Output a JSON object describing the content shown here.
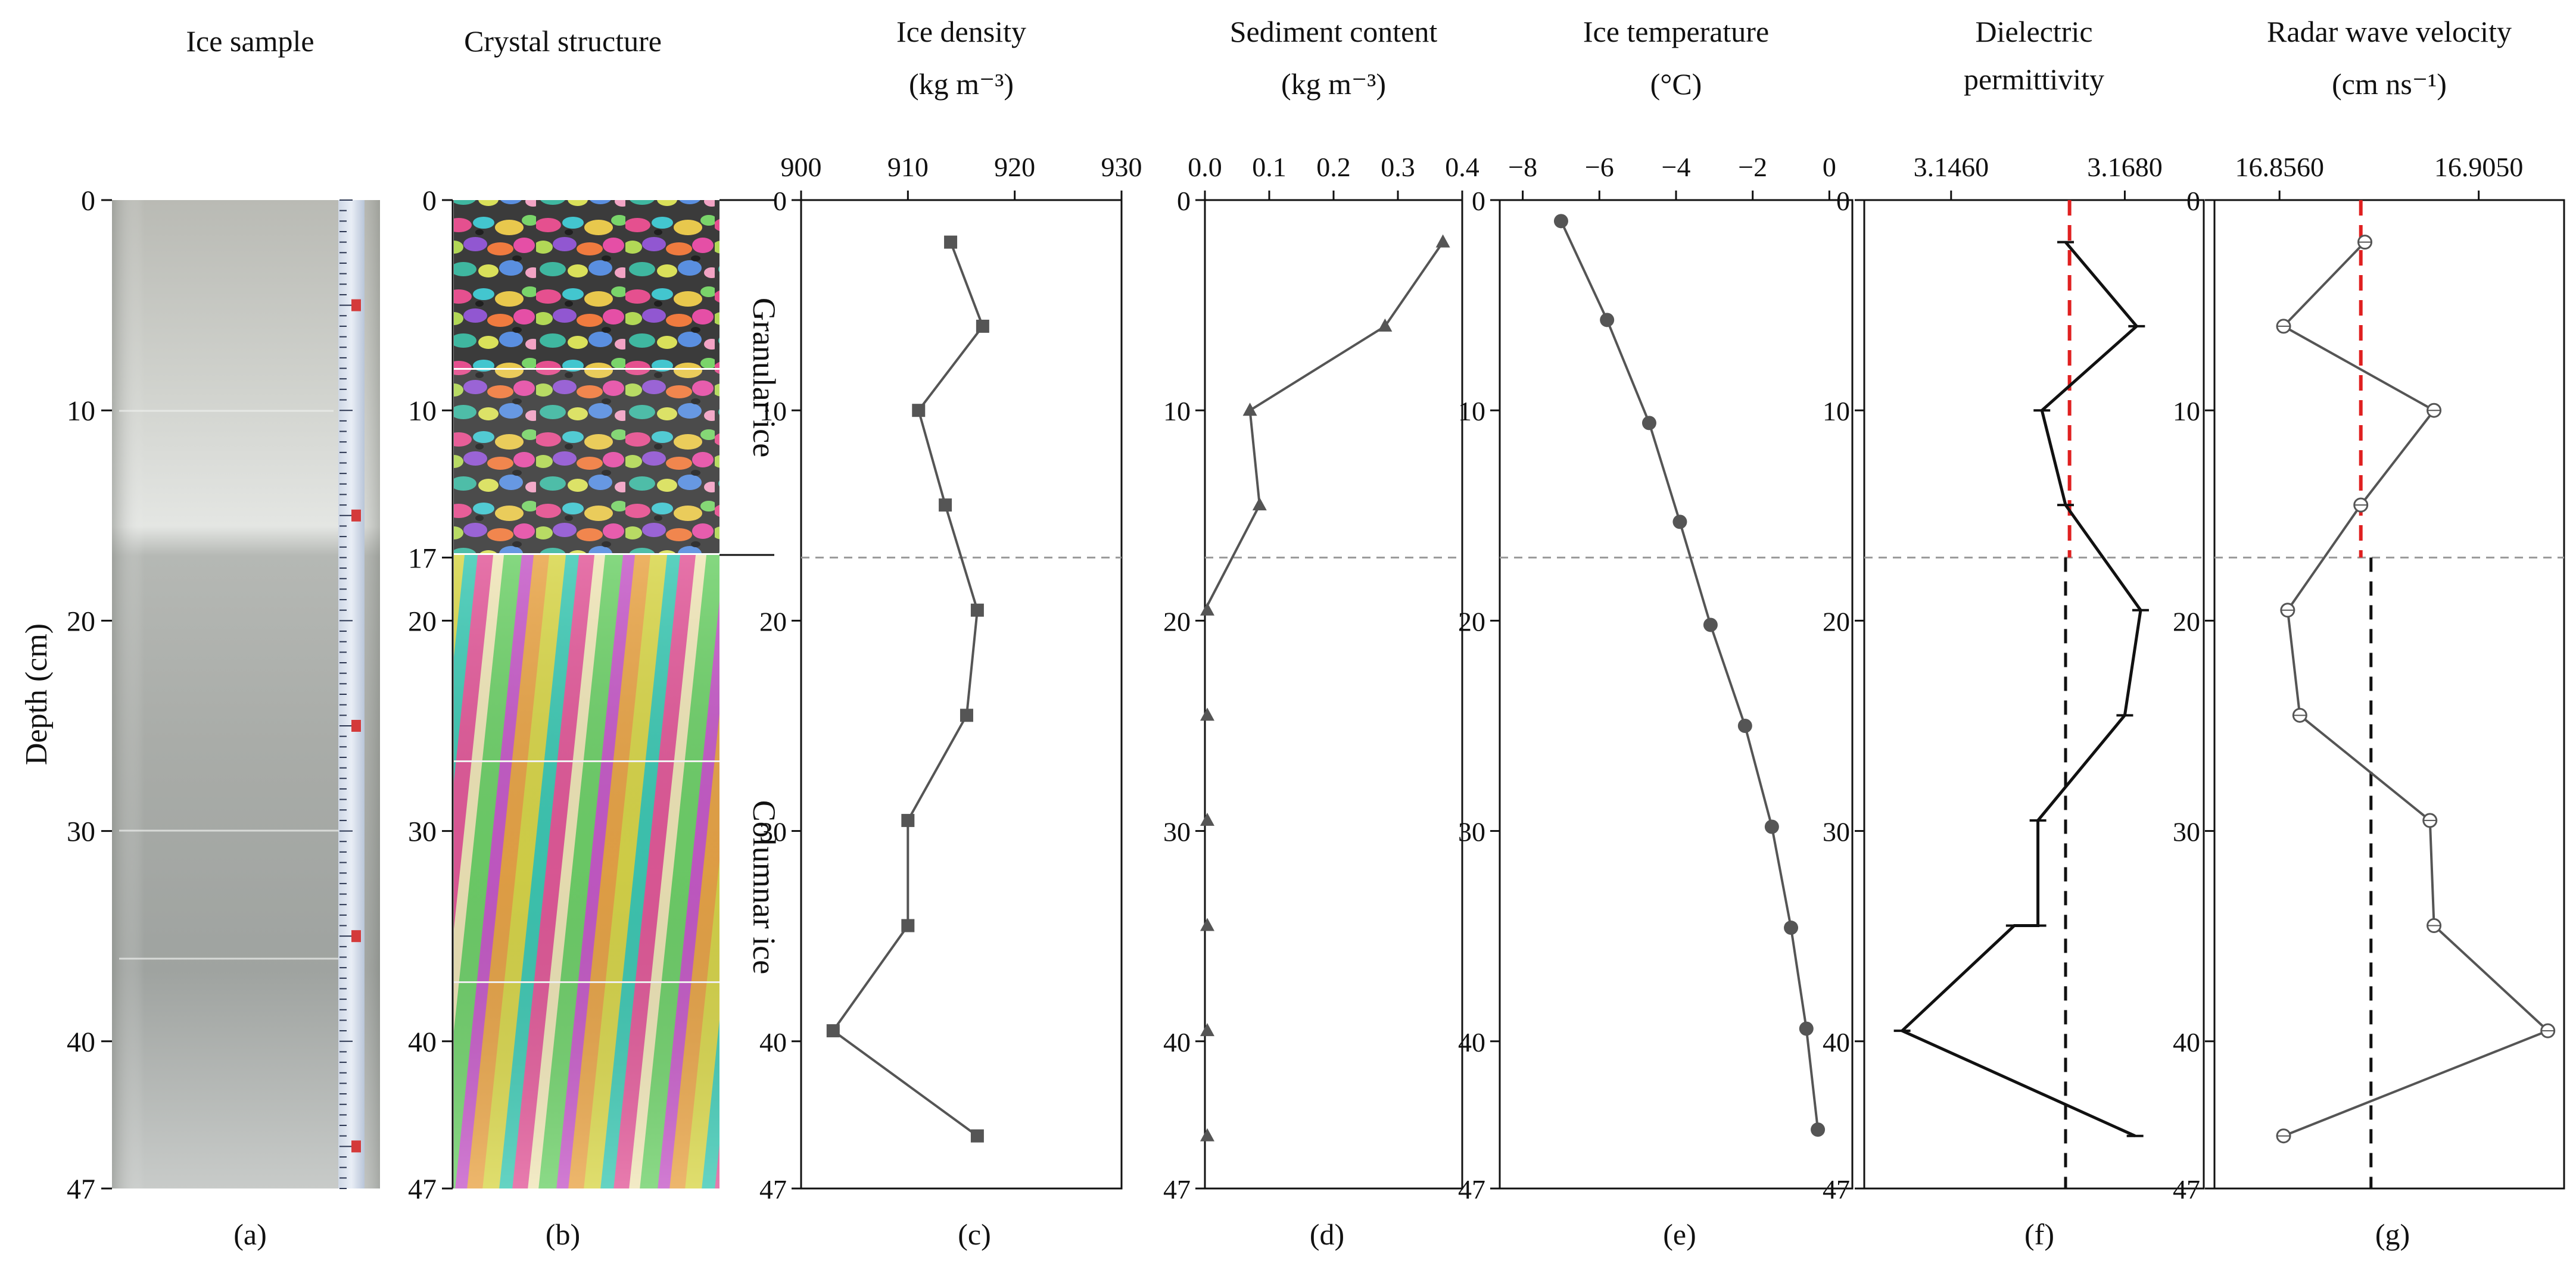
{
  "figure": {
    "y_axis": {
      "label": "Depth (cm)",
      "ticks": [
        0,
        10,
        20,
        30,
        40,
        47
      ],
      "range": [
        0,
        47
      ]
    },
    "panel_letters": [
      "(a)",
      "(b)",
      "(c)",
      "(d)",
      "(e)",
      "(f)",
      "(g)"
    ],
    "dashed_boundary_depth": 17
  },
  "photos": {
    "ice_sample": {
      "title": "Ice sample"
    },
    "crystal_structure": {
      "title": "Crystal  structure",
      "ticks": [
        0,
        10,
        17,
        20,
        30,
        40,
        47
      ],
      "zones": [
        {
          "label": "Granular ice",
          "from": 0,
          "to": 17
        },
        {
          "label": "Columnar ice",
          "from": 17,
          "to": 47
        }
      ]
    }
  },
  "colors": {
    "series": "#555555",
    "axis": "#111111",
    "boundary": "#9a9a9a",
    "reference_red": "#e02020",
    "reference_black": "#111111"
  },
  "chart_data": [
    {
      "id": "c",
      "type": "line",
      "marker": "square",
      "title": "Ice density",
      "unit": "(kg m⁻³)",
      "xticks": [
        900,
        910,
        920,
        930
      ],
      "xlim": [
        900,
        930
      ],
      "ylim": [
        47,
        0
      ],
      "x": [
        914,
        917,
        911,
        913.5,
        916.5,
        915.5,
        910,
        910,
        903,
        916.5
      ],
      "y": [
        2,
        6,
        10,
        14.5,
        19.5,
        24.5,
        29.5,
        34.5,
        39.5,
        44.5
      ]
    },
    {
      "id": "d",
      "type": "line",
      "marker": "triangle",
      "title": "Sediment content",
      "unit": "(kg m⁻³)",
      "xticks": [
        "0.0",
        "0.1",
        "0.2",
        "0.3",
        "0.4"
      ],
      "xlim": [
        0,
        0.4
      ],
      "ylim": [
        47,
        0
      ],
      "x": [
        0.37,
        0.28,
        0.07,
        0.085,
        0.0,
        0.0,
        0.0,
        0.0,
        0.0,
        0.0
      ],
      "y": [
        2,
        6,
        10,
        14.5,
        19.5,
        24.5,
        29.5,
        34.5,
        39.5,
        44.5
      ]
    },
    {
      "id": "e",
      "type": "line",
      "marker": "circle",
      "title": "Ice temperature",
      "unit": "(°C)",
      "xticks": [
        "−8",
        "−6",
        "−4",
        "−2",
        "0"
      ],
      "xlim": [
        -8.6,
        0.6
      ],
      "ylim": [
        47,
        0
      ],
      "x": [
        -7.0,
        -5.8,
        -4.7,
        -3.9,
        -3.1,
        -2.2,
        -1.5,
        -1.0,
        -0.6,
        -0.3
      ],
      "y": [
        1,
        5.7,
        10.6,
        15.3,
        20.2,
        25,
        29.8,
        34.6,
        39.4,
        44.2
      ]
    },
    {
      "id": "f",
      "type": "line",
      "marker": "dash",
      "title_line1": "Dielectric",
      "title_line2": "permittivity",
      "xticks": [
        "3.1460",
        "3.1680"
      ],
      "xlim": [
        3.135,
        3.178
      ],
      "ylim": [
        47,
        0
      ],
      "x": [
        3.1605,
        3.1695,
        3.1575,
        3.1605,
        3.17,
        3.168,
        3.157,
        3.157,
        3.154,
        3.1398,
        3.1693
      ],
      "y": [
        2,
        6,
        10,
        14.5,
        19.5,
        24.5,
        29.5,
        34.5,
        34.5,
        39.5,
        44.5
      ],
      "reference_red": {
        "x": 3.161,
        "from": 0,
        "to": 17
      },
      "reference_black": {
        "x": 3.1605,
        "from": 17,
        "to": 47
      }
    },
    {
      "id": "g",
      "type": "line",
      "marker": "circle-cross",
      "title": "Radar wave velocity",
      "unit": "(cm ns⁻¹)",
      "xticks": [
        "16.8560",
        "16.9050"
      ],
      "xlim": [
        16.84,
        16.926
      ],
      "ylim": [
        47,
        0
      ],
      "x": [
        16.877,
        16.857,
        16.894,
        16.876,
        16.858,
        16.861,
        16.893,
        16.894,
        16.922,
        16.857
      ],
      "y": [
        2,
        6,
        10,
        14.5,
        19.5,
        24.5,
        29.5,
        34.5,
        39.5,
        44.5
      ],
      "reference_red": {
        "x": 16.876,
        "from": 0,
        "to": 17
      },
      "reference_black": {
        "x": 16.8785,
        "from": 17,
        "to": 47
      }
    }
  ]
}
